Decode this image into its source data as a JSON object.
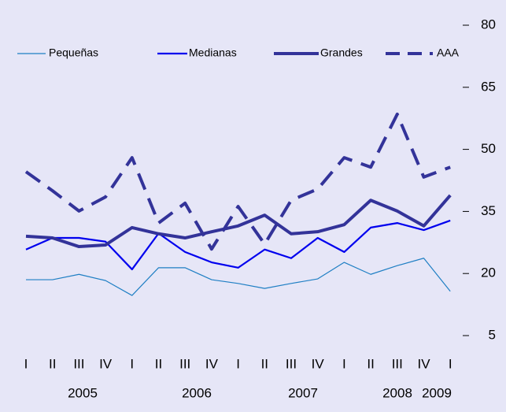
{
  "chart_data": {
    "type": "line",
    "categories": [
      "I",
      "II",
      "III",
      "IV",
      "I",
      "II",
      "III",
      "IV",
      "I",
      "II",
      "III",
      "IV",
      "I",
      "II",
      "III",
      "IV",
      "I"
    ],
    "years": [
      "2005",
      "2006",
      "2007",
      "2008",
      "2009"
    ],
    "series": [
      {
        "name": "Pequeñas",
        "color": "#1f7fc4",
        "width": 1.2,
        "dashed": false,
        "values": [
          18.5,
          18.5,
          19.8,
          18.3,
          14.7,
          21.4,
          21.4,
          18.5,
          17.6,
          16.4,
          17.6,
          18.7,
          22.7,
          19.8,
          21.9,
          23.7,
          15.7
        ]
      },
      {
        "name": "Medianas",
        "color": "#0000ee",
        "width": 2.2,
        "dashed": false,
        "values": [
          25.8,
          28.6,
          28.6,
          27.7,
          21.0,
          29.7,
          25.2,
          22.7,
          21.4,
          25.8,
          23.7,
          28.6,
          25.2,
          31.1,
          32.2,
          30.5,
          32.8
        ]
      },
      {
        "name": "Grandes",
        "color": "#333399",
        "width": 4,
        "dashed": false,
        "values": [
          29.0,
          28.6,
          26.5,
          26.9,
          31.1,
          29.6,
          28.6,
          30.1,
          31.5,
          34.1,
          29.6,
          30.1,
          31.8,
          37.7,
          35.1,
          31.5,
          38.9
        ]
      },
      {
        "name": "AAA",
        "color": "#333399",
        "width": 4,
        "dashed": true,
        "values": [
          44.6,
          40.0,
          35.1,
          38.5,
          48.0,
          32.2,
          37.0,
          25.9,
          36.2,
          27.1,
          37.7,
          40.4,
          48.0,
          45.7,
          58.5,
          43.3,
          45.7
        ]
      }
    ],
    "ylim": [
      5,
      80
    ],
    "yticks": [
      5,
      20,
      35,
      50,
      65,
      80
    ],
    "y_axis_side": "right",
    "grid": false
  }
}
